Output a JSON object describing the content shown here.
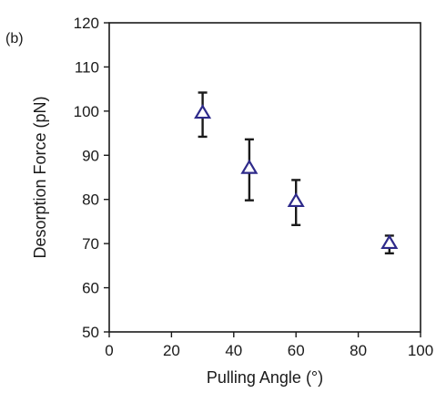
{
  "panel_label": "(b)",
  "colors": {
    "marker": "#2e2a8a",
    "errorbar": "#1a1a1a",
    "axis": "#1a1a1a",
    "background": "#ffffff"
  },
  "chart_data": {
    "type": "scatter",
    "title": "",
    "xlabel": "Pulling Angle (°)",
    "ylabel": "Desorption Force (pN)",
    "xlim": [
      0,
      100
    ],
    "ylim": [
      50,
      120
    ],
    "xticks": [
      0,
      20,
      40,
      60,
      80,
      100
    ],
    "yticks": [
      50,
      60,
      70,
      80,
      90,
      100,
      110,
      120
    ],
    "xtick_labels": [
      "0",
      "20",
      "40",
      "60",
      "80",
      "100"
    ],
    "ytick_labels": [
      "50",
      "60",
      "70",
      "80",
      "90",
      "100",
      "110",
      "120"
    ],
    "grid": false,
    "marker": "open-triangle",
    "series": [
      {
        "x": [
          30,
          45,
          60,
          90
        ],
        "y": [
          99.5,
          87,
          79.5,
          70
        ],
        "yerr_low": [
          94.2,
          79.8,
          74.2,
          67.8
        ],
        "yerr_high": [
          104.2,
          93.6,
          84.4,
          71.8
        ]
      }
    ]
  }
}
